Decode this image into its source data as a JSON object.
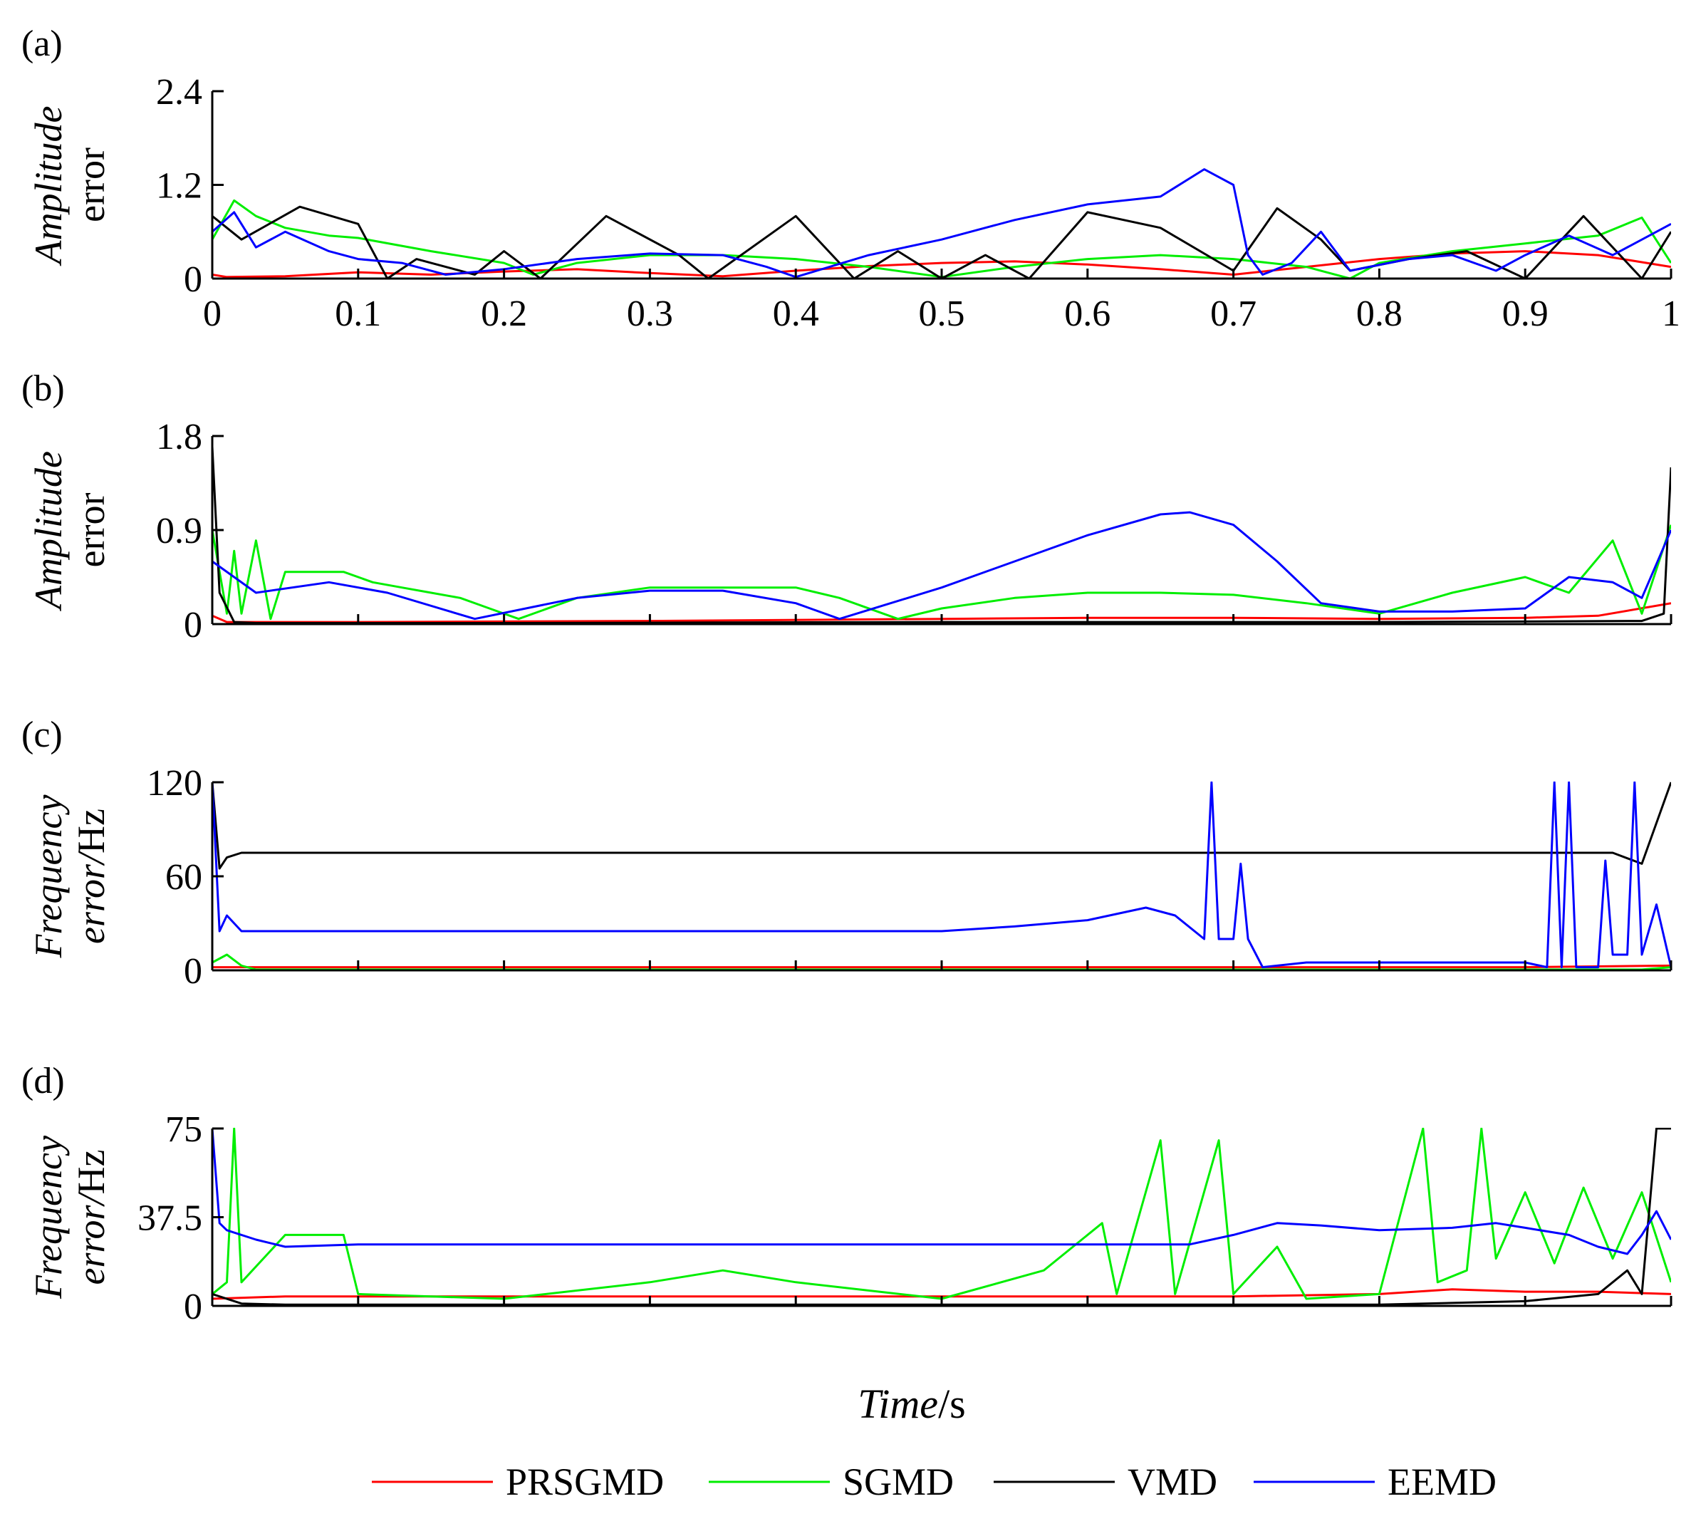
{
  "figure": {
    "xlabel_italic": "Time",
    "xlabel_unit": "/s"
  },
  "legend": [
    {
      "name": "PRSGMD",
      "color": "#ff0000"
    },
    {
      "name": "SGMD",
      "color": "#00ee00"
    },
    {
      "name": "VMD",
      "color": "#000000"
    },
    {
      "name": "EEMD",
      "color": "#0000ff"
    }
  ],
  "chart_data": [
    {
      "type": "line",
      "panel": "(a)",
      "ylabel_line1": "Amplitude",
      "ylabel_line2": "error",
      "ylabel_line2_italic": false,
      "xlim": [
        0,
        1
      ],
      "ylim": [
        0,
        2.4
      ],
      "xticks": [
        0,
        0.1,
        0.2,
        0.3,
        0.4,
        0.5,
        0.6,
        0.7,
        0.8,
        0.9,
        1
      ],
      "xtick_labels": [
        "0",
        "0.1",
        "0.2",
        "0.3",
        "0.4",
        "0.5",
        "0.6",
        "0.7",
        "0.8",
        "0.9",
        "1"
      ],
      "yticks": [
        0,
        1.2,
        2.4
      ],
      "ytick_labels": [
        "0",
        "1.2",
        "2.4"
      ],
      "series": [
        {
          "name": "PRSGMD",
          "color": "#ff0000",
          "x": [
            0,
            0.01,
            0.05,
            0.1,
            0.15,
            0.2,
            0.25,
            0.3,
            0.35,
            0.4,
            0.45,
            0.5,
            0.55,
            0.6,
            0.65,
            0.7,
            0.75,
            0.8,
            0.85,
            0.9,
            0.95,
            1
          ],
          "y": [
            0.05,
            0.02,
            0.03,
            0.08,
            0.05,
            0.09,
            0.12,
            0.07,
            0.03,
            0.1,
            0.16,
            0.2,
            0.22,
            0.18,
            0.12,
            0.05,
            0.15,
            0.25,
            0.32,
            0.35,
            0.3,
            0.15
          ]
        },
        {
          "name": "SGMD",
          "color": "#00ee00",
          "x": [
            0,
            0.015,
            0.03,
            0.05,
            0.08,
            0.1,
            0.15,
            0.2,
            0.22,
            0.25,
            0.3,
            0.35,
            0.4,
            0.45,
            0.5,
            0.55,
            0.6,
            0.65,
            0.7,
            0.75,
            0.78,
            0.8,
            0.85,
            0.9,
            0.95,
            0.98,
            1
          ],
          "y": [
            0.5,
            1.0,
            0.8,
            0.65,
            0.55,
            0.52,
            0.35,
            0.2,
            0.05,
            0.2,
            0.3,
            0.3,
            0.25,
            0.15,
            0.02,
            0.15,
            0.25,
            0.3,
            0.25,
            0.15,
            0.0,
            0.2,
            0.35,
            0.45,
            0.55,
            0.78,
            0.2
          ]
        },
        {
          "name": "VMD",
          "color": "#000000",
          "x": [
            0,
            0.02,
            0.06,
            0.1,
            0.12,
            0.14,
            0.18,
            0.2,
            0.225,
            0.27,
            0.32,
            0.34,
            0.4,
            0.44,
            0.47,
            0.5,
            0.53,
            0.56,
            0.6,
            0.65,
            0.7,
            0.73,
            0.76,
            0.78,
            0.82,
            0.86,
            0.9,
            0.94,
            0.98,
            1
          ],
          "y": [
            0.8,
            0.5,
            0.92,
            0.7,
            0.0,
            0.25,
            0.05,
            0.35,
            0.0,
            0.8,
            0.3,
            0.0,
            0.8,
            0.0,
            0.35,
            0.0,
            0.3,
            0.0,
            0.85,
            0.65,
            0.1,
            0.9,
            0.5,
            0.1,
            0.25,
            0.35,
            0.0,
            0.8,
            0.0,
            0.6
          ]
        },
        {
          "name": "EEMD",
          "color": "#0000ff",
          "x": [
            0,
            0.015,
            0.03,
            0.05,
            0.08,
            0.1,
            0.13,
            0.16,
            0.2,
            0.25,
            0.3,
            0.35,
            0.38,
            0.4,
            0.45,
            0.5,
            0.55,
            0.6,
            0.65,
            0.68,
            0.7,
            0.71,
            0.72,
            0.74,
            0.76,
            0.78,
            0.82,
            0.85,
            0.88,
            0.9,
            0.93,
            0.96,
            0.99,
            1
          ],
          "y": [
            0.6,
            0.85,
            0.4,
            0.6,
            0.35,
            0.25,
            0.2,
            0.05,
            0.12,
            0.25,
            0.32,
            0.3,
            0.15,
            0.02,
            0.3,
            0.5,
            0.75,
            0.95,
            1.05,
            1.4,
            1.2,
            0.3,
            0.05,
            0.2,
            0.6,
            0.1,
            0.25,
            0.3,
            0.1,
            0.3,
            0.55,
            0.3,
            0.6,
            0.7
          ]
        }
      ]
    },
    {
      "type": "line",
      "panel": "(b)",
      "ylabel_line1": "Amplitude",
      "ylabel_line2": "error",
      "ylabel_line2_italic": false,
      "xlim": [
        0,
        1
      ],
      "ylim": [
        0,
        1.8
      ],
      "xticks": [
        0,
        0.1,
        0.2,
        0.3,
        0.4,
        0.5,
        0.6,
        0.7,
        0.8,
        0.9,
        1
      ],
      "yticks": [
        0,
        0.9,
        1.8
      ],
      "ytick_labels": [
        "0",
        "0.9",
        "1.8"
      ],
      "series": [
        {
          "name": "PRSGMD",
          "color": "#ff0000",
          "x": [
            0,
            0.01,
            0.1,
            0.3,
            0.5,
            0.6,
            0.7,
            0.8,
            0.9,
            0.95,
            1
          ],
          "y": [
            0.08,
            0.02,
            0.02,
            0.03,
            0.05,
            0.06,
            0.06,
            0.05,
            0.06,
            0.08,
            0.2
          ]
        },
        {
          "name": "SGMD",
          "color": "#00ee00",
          "x": [
            0,
            0.01,
            0.015,
            0.02,
            0.03,
            0.04,
            0.05,
            0.07,
            0.09,
            0.11,
            0.13,
            0.15,
            0.17,
            0.19,
            0.21,
            0.25,
            0.3,
            0.35,
            0.4,
            0.43,
            0.47,
            0.5,
            0.55,
            0.6,
            0.65,
            0.7,
            0.75,
            0.8,
            0.85,
            0.9,
            0.93,
            0.96,
            0.98,
            1
          ],
          "y": [
            0.9,
            0.1,
            0.7,
            0.1,
            0.8,
            0.05,
            0.5,
            0.5,
            0.5,
            0.4,
            0.35,
            0.3,
            0.25,
            0.15,
            0.05,
            0.25,
            0.35,
            0.35,
            0.35,
            0.25,
            0.05,
            0.15,
            0.25,
            0.3,
            0.3,
            0.28,
            0.2,
            0.1,
            0.3,
            0.45,
            0.3,
            0.8,
            0.1,
            0.95
          ]
        },
        {
          "name": "VMD",
          "color": "#000000",
          "x": [
            0,
            0.005,
            0.015,
            0.03,
            0.2,
            0.5,
            0.8,
            0.98,
            0.995,
            1
          ],
          "y": [
            1.7,
            0.3,
            0.02,
            0.01,
            0.01,
            0.02,
            0.02,
            0.03,
            0.1,
            1.5
          ]
        },
        {
          "name": "EEMD",
          "color": "#0000ff",
          "x": [
            0,
            0.03,
            0.08,
            0.12,
            0.18,
            0.25,
            0.3,
            0.35,
            0.4,
            0.43,
            0.5,
            0.55,
            0.6,
            0.65,
            0.67,
            0.7,
            0.73,
            0.76,
            0.8,
            0.85,
            0.9,
            0.93,
            0.96,
            0.98,
            1
          ],
          "y": [
            0.6,
            0.3,
            0.4,
            0.3,
            0.05,
            0.25,
            0.32,
            0.32,
            0.2,
            0.05,
            0.35,
            0.6,
            0.85,
            1.05,
            1.07,
            0.95,
            0.6,
            0.2,
            0.12,
            0.12,
            0.15,
            0.45,
            0.4,
            0.25,
            0.9
          ]
        }
      ]
    },
    {
      "type": "line",
      "panel": "(c)",
      "ylabel_line1": "Frequency",
      "ylabel_line2": "error/",
      "ylabel_line2_italic": true,
      "ylabel_unit": "Hz",
      "xlim": [
        0,
        1
      ],
      "ylim": [
        0,
        120
      ],
      "xticks": [
        0,
        0.1,
        0.2,
        0.3,
        0.4,
        0.5,
        0.6,
        0.7,
        0.8,
        0.9,
        1
      ],
      "yticks": [
        0,
        60,
        120
      ],
      "ytick_labels": [
        "0",
        "60",
        "120"
      ],
      "series": [
        {
          "name": "PRSGMD",
          "color": "#ff0000",
          "x": [
            0,
            0.02,
            0.3,
            0.6,
            0.9,
            1
          ],
          "y": [
            2,
            2,
            2,
            2,
            2,
            3
          ]
        },
        {
          "name": "SGMD",
          "color": "#00ee00",
          "x": [
            0,
            0.01,
            0.02,
            0.03,
            0.5,
            0.98,
            1
          ],
          "y": [
            5,
            10,
            3,
            0.5,
            0.5,
            0.5,
            2
          ]
        },
        {
          "name": "VMD",
          "color": "#000000",
          "x": [
            0,
            0.005,
            0.01,
            0.02,
            0.2,
            0.4,
            0.6,
            0.8,
            0.9,
            0.96,
            0.98,
            1
          ],
          "y": [
            120,
            65,
            72,
            75,
            75,
            75,
            75,
            75,
            75,
            75,
            68,
            120
          ]
        },
        {
          "name": "EEMD",
          "color": "#0000ff",
          "x": [
            0,
            0.005,
            0.01,
            0.02,
            0.05,
            0.1,
            0.2,
            0.3,
            0.4,
            0.5,
            0.55,
            0.6,
            0.64,
            0.66,
            0.68,
            0.685,
            0.69,
            0.7,
            0.705,
            0.71,
            0.72,
            0.75,
            0.8,
            0.85,
            0.9,
            0.915,
            0.92,
            0.925,
            0.93,
            0.935,
            0.94,
            0.95,
            0.955,
            0.96,
            0.97,
            0.975,
            0.98,
            0.99,
            1
          ],
          "y": [
            120,
            25,
            35,
            25,
            25,
            25,
            25,
            25,
            25,
            25,
            28,
            32,
            40,
            35,
            20,
            120,
            20,
            20,
            68,
            20,
            2,
            5,
            5,
            5,
            5,
            2,
            120,
            2,
            120,
            2,
            2,
            2,
            70,
            10,
            10,
            120,
            10,
            42,
            2
          ]
        }
      ]
    },
    {
      "type": "line",
      "panel": "(d)",
      "ylabel_line1": "Frequency",
      "ylabel_line2": "error/",
      "ylabel_line2_italic": true,
      "ylabel_unit": "Hz",
      "xlim": [
        0,
        1
      ],
      "ylim": [
        0,
        75
      ],
      "xticks": [
        0,
        0.1,
        0.2,
        0.3,
        0.4,
        0.5,
        0.6,
        0.7,
        0.8,
        0.9,
        1
      ],
      "yticks": [
        0,
        37.5,
        75
      ],
      "ytick_labels": [
        "0",
        "37.5",
        "75"
      ],
      "series": [
        {
          "name": "PRSGMD",
          "color": "#ff0000",
          "x": [
            0,
            0.05,
            0.1,
            0.2,
            0.3,
            0.4,
            0.5,
            0.6,
            0.7,
            0.8,
            0.85,
            0.9,
            0.95,
            1
          ],
          "y": [
            3,
            4,
            4,
            4,
            4,
            4,
            4,
            4,
            4,
            5,
            7,
            6,
            6,
            5
          ]
        },
        {
          "name": "SGMD",
          "color": "#00ee00",
          "x": [
            0,
            0.01,
            0.015,
            0.02,
            0.05,
            0.09,
            0.1,
            0.2,
            0.3,
            0.35,
            0.4,
            0.5,
            0.57,
            0.61,
            0.62,
            0.65,
            0.66,
            0.69,
            0.7,
            0.73,
            0.75,
            0.8,
            0.83,
            0.84,
            0.86,
            0.87,
            0.88,
            0.9,
            0.92,
            0.94,
            0.95,
            0.96,
            0.98,
            1
          ],
          "y": [
            5,
            10,
            75,
            10,
            30,
            30,
            5,
            3,
            10,
            15,
            10,
            3,
            15,
            35,
            5,
            70,
            5,
            70,
            5,
            25,
            3,
            5,
            75,
            10,
            15,
            75,
            20,
            48,
            18,
            50,
            35,
            20,
            48,
            10
          ]
        },
        {
          "name": "VMD",
          "color": "#000000",
          "x": [
            0,
            0.02,
            0.05,
            0.5,
            0.8,
            0.9,
            0.95,
            0.97,
            0.98,
            0.99,
            1
          ],
          "y": [
            5,
            1,
            0.5,
            0.5,
            0.5,
            2,
            5,
            15,
            5,
            75,
            75
          ]
        },
        {
          "name": "EEMD",
          "color": "#0000ff",
          "x": [
            0,
            0.005,
            0.01,
            0.03,
            0.05,
            0.1,
            0.2,
            0.3,
            0.4,
            0.5,
            0.6,
            0.67,
            0.7,
            0.73,
            0.76,
            0.8,
            0.85,
            0.88,
            0.9,
            0.93,
            0.95,
            0.97,
            0.98,
            0.99,
            1
          ],
          "y": [
            75,
            35,
            32,
            28,
            25,
            26,
            26,
            26,
            26,
            26,
            26,
            26,
            30,
            35,
            34,
            32,
            33,
            35,
            33,
            30,
            25,
            22,
            30,
            40,
            28
          ]
        }
      ]
    }
  ]
}
